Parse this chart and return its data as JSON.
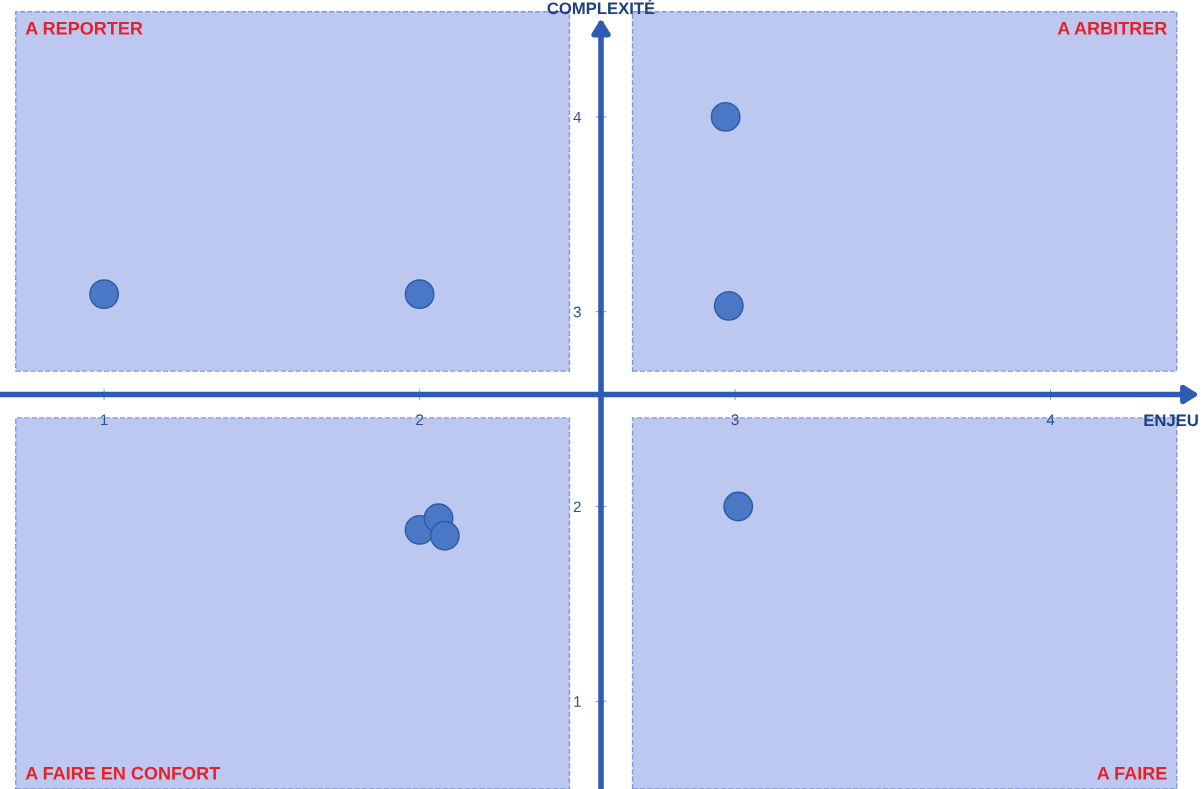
{
  "chart_data": {
    "type": "scatter",
    "xlabel": "ENJEU",
    "ylabel": "COMPLEXITÉ",
    "x": [
      1.0,
      2.0,
      2.97,
      2.98,
      2.0,
      2.06,
      2.08,
      3.01
    ],
    "values": [
      3.09,
      3.09,
      4.0,
      3.03,
      1.88,
      1.94,
      1.85,
      2.0
    ],
    "color": "#4a78c6",
    "marker": "circle",
    "grid": false,
    "xlim": [
      0.67,
      4.48
    ],
    "ylim": [
      0.55,
      4.6
    ],
    "xticks": [
      1,
      2,
      3,
      4
    ],
    "yticks": [
      1,
      2,
      3,
      4
    ],
    "annotations": [
      "A REPORTER",
      "A ARBITRER",
      "A FAIRE EN CONFORT",
      "A FAIRE"
    ]
  }
}
